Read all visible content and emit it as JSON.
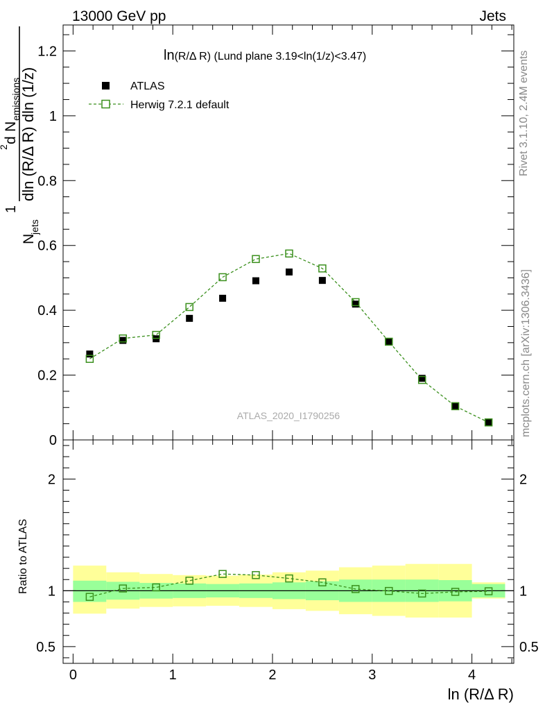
{
  "header": {
    "left": "13000 GeV pp",
    "right": "Jets"
  },
  "side_labels": {
    "rivet": "Rivet 3.1.10,  2.4M events",
    "mcplots": "mcplots.cern.ch [arXiv:1306.3436]"
  },
  "plot_title": {
    "main": "ln",
    "sub": "(R/Δ R) (Lund plane 3.19<ln(1/z)<3.47)"
  },
  "watermark": "ATLAS_2020_I1790256",
  "y_axis_label": {
    "one": "1",
    "njets": "N",
    "njets_sub": "jets",
    "d2": "d",
    "d2_exp": "2",
    "nemis": "N",
    "nemis_sub": "emissions",
    "denominator": "dln (R/Δ R) dln (1/z)"
  },
  "ratio_y_label": "Ratio to ATLAS",
  "x_axis_label": "ln (R/Δ R)",
  "colors": {
    "data": "#000000",
    "mc": "#3a8f1c",
    "band_inner": "#99ff99",
    "band_outer": "#ffff99"
  },
  "chart_data": {
    "type": "scatter",
    "x_edges": [
      0.0,
      0.333,
      0.667,
      1.0,
      1.333,
      1.667,
      2.0,
      2.333,
      2.667,
      3.0,
      3.333,
      3.667,
      4.0,
      4.333
    ],
    "x": [
      0.167,
      0.5,
      0.833,
      1.167,
      1.5,
      1.833,
      2.167,
      2.5,
      2.833,
      3.167,
      3.5,
      3.833,
      4.167
    ],
    "xlim": [
      -0.1,
      4.42
    ],
    "xticks": [
      "0",
      "1",
      "2",
      "3",
      "4"
    ],
    "main": {
      "ylim": [
        0,
        1.28
      ],
      "yticks": [
        "0",
        "0.2",
        "0.4",
        "0.6",
        "0.8",
        "1",
        "1.2"
      ],
      "series": [
        {
          "name": "ATLAS",
          "values": [
            0.265,
            0.307,
            0.312,
            0.375,
            0.437,
            0.491,
            0.518,
            0.492,
            0.419,
            0.303,
            0.19,
            0.105,
            0.055
          ]
        },
        {
          "name": "Herwig 7.2.1 default",
          "values": [
            0.25,
            0.313,
            0.324,
            0.41,
            0.502,
            0.558,
            0.575,
            0.529,
            0.425,
            0.303,
            0.185,
            0.104,
            0.054
          ]
        }
      ]
    },
    "ratio": {
      "ylim": [
        0.35,
        2.35
      ],
      "yticks": [
        "0.5",
        "1",
        "2"
      ],
      "mc_ratio": [
        0.945,
        1.02,
        1.03,
        1.09,
        1.15,
        1.14,
        1.11,
        1.075,
        1.015,
        0.998,
        0.975,
        0.99,
        0.995
      ],
      "band_inner": [
        [
          0.9,
          1.09
        ],
        [
          0.92,
          1.08
        ],
        [
          0.93,
          1.07
        ],
        [
          0.935,
          1.065
        ],
        [
          0.94,
          1.06
        ],
        [
          0.935,
          1.065
        ],
        [
          0.925,
          1.075
        ],
        [
          0.915,
          1.085
        ],
        [
          0.9,
          1.1
        ],
        [
          0.9,
          1.1
        ],
        [
          0.9,
          1.1
        ],
        [
          0.905,
          1.095
        ],
        [
          0.94,
          1.06
        ]
      ],
      "band_outer": [
        [
          0.795,
          1.225
        ],
        [
          0.84,
          1.165
        ],
        [
          0.855,
          1.15
        ],
        [
          0.86,
          1.14
        ],
        [
          0.865,
          1.135
        ],
        [
          0.855,
          1.145
        ],
        [
          0.835,
          1.165
        ],
        [
          0.82,
          1.18
        ],
        [
          0.79,
          1.21
        ],
        [
          0.775,
          1.225
        ],
        [
          0.76,
          1.24
        ],
        [
          0.76,
          1.24
        ],
        [
          0.93,
          1.075
        ]
      ]
    }
  }
}
